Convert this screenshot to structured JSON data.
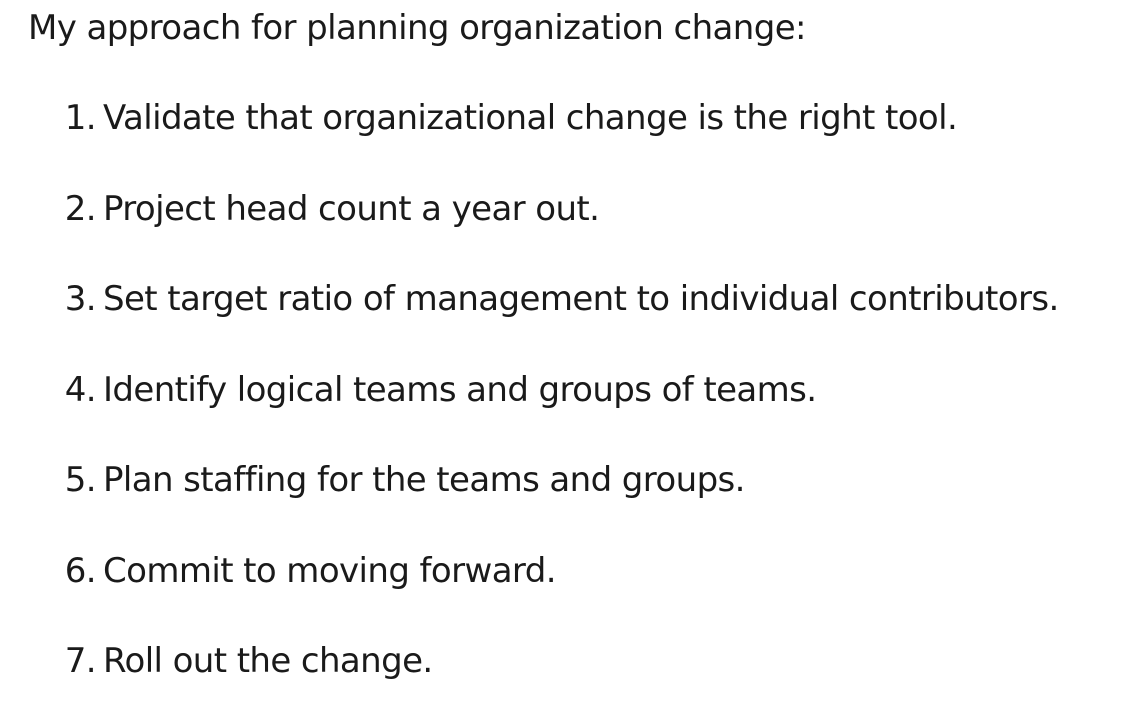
{
  "intro": "My approach for planning organization change:",
  "steps": [
    {
      "number": "1.",
      "text": "Validate that organizational change is the right tool."
    },
    {
      "number": "2.",
      "text": "Project head count a year out."
    },
    {
      "number": "3.",
      "text": "Set target ratio of management to individual contributors."
    },
    {
      "number": "4.",
      "text": "Identify logical teams and groups of teams."
    },
    {
      "number": "5.",
      "text": "Plan staffing for the teams and groups."
    },
    {
      "number": "6.",
      "text": "Commit to moving forward."
    },
    {
      "number": "7.",
      "text": "Roll out the change."
    }
  ]
}
